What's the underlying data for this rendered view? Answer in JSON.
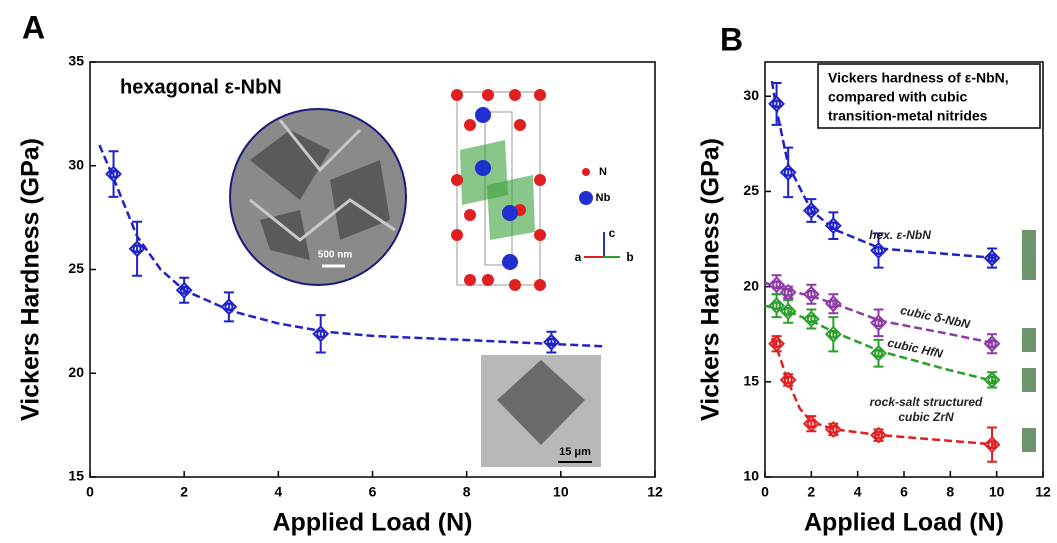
{
  "chart_data": [
    {
      "type": "errorbar",
      "panel_label": "A",
      "annotation": "hexagonal ε-NbN",
      "inset_labels": [
        "500 nm",
        "N",
        "Nb",
        "c",
        "a",
        "b",
        "15 μm"
      ],
      "xlabel": "Applied Load (N)",
      "ylabel": "Vickers Hardness (GPa)",
      "xlim": [
        0,
        12
      ],
      "xticks": [
        0,
        2,
        4,
        6,
        8,
        10,
        12
      ],
      "ylim": [
        15,
        35
      ],
      "yticks": [
        15,
        20,
        25,
        30,
        35
      ],
      "series": [
        {
          "color": "#1f22c8",
          "x": [
            0.5,
            1.0,
            2.0,
            2.95,
            4.9,
            9.8
          ],
          "values": [
            29.6,
            26.0,
            24.0,
            23.2,
            21.9,
            21.5
          ],
          "errors": [
            1.1,
            1.3,
            0.6,
            0.7,
            0.9,
            0.5
          ],
          "fit_x": [
            0.2,
            0.5,
            1,
            1.5,
            2,
            3,
            4,
            5,
            6,
            8,
            10.9
          ],
          "fit_y": [
            31.0,
            29.4,
            26.6,
            25.0,
            24.0,
            23.0,
            22.4,
            22.0,
            21.8,
            21.6,
            21.3
          ]
        }
      ]
    },
    {
      "type": "errorbar",
      "panel_label": "B",
      "box_lines": [
        "Vickers hardness of ε-NbN,",
        "compared with cubic",
        "transition-metal nitrides"
      ],
      "xlabel": "Applied Load (N)",
      "ylabel": "Vickers Hardness (GPa)",
      "xlim": [
        0,
        12
      ],
      "xticks": [
        0,
        2,
        4,
        6,
        8,
        10,
        12
      ],
      "ylim": [
        10,
        31.8
      ],
      "yticks": [
        10,
        15,
        20,
        25,
        30
      ],
      "series": [
        {
          "name": "hex. ε-NbN",
          "color": "#1f22c8",
          "x": [
            0.5,
            1.0,
            2.0,
            2.95,
            4.9,
            9.8
          ],
          "values": [
            29.6,
            26.0,
            24.0,
            23.2,
            21.9,
            21.5
          ],
          "errors": [
            1.1,
            1.3,
            0.6,
            0.7,
            0.9,
            0.5
          ],
          "fit_x": [
            0.3,
            0.5,
            1,
            2,
            3,
            5,
            8,
            10
          ],
          "fit_y": [
            30.8,
            29.3,
            26.4,
            24.0,
            23.0,
            22.0,
            21.7,
            21.5
          ]
        },
        {
          "name": "cubic δ-NbN",
          "color": "#8e3aa6",
          "x": [
            0.5,
            1.0,
            2.0,
            2.95,
            4.9,
            9.8
          ],
          "values": [
            20.1,
            19.7,
            19.6,
            19.1,
            18.1,
            17.0
          ],
          "errors": [
            0.5,
            0.3,
            0.5,
            0.5,
            0.7,
            0.5
          ],
          "fit_x": [
            0,
            1,
            2,
            3,
            5,
            8,
            10
          ],
          "fit_y": [
            20.2,
            19.8,
            19.5,
            19.1,
            18.2,
            17.5,
            17.0
          ]
        },
        {
          "name": "cubic HfN",
          "color": "#2aa02a",
          "x": [
            0.5,
            1.0,
            2.0,
            2.95,
            4.9,
            9.8
          ],
          "values": [
            19.0,
            18.7,
            18.3,
            17.5,
            16.5,
            15.1
          ],
          "errors": [
            0.6,
            0.6,
            0.5,
            0.9,
            0.7,
            0.4
          ],
          "fit_x": [
            0,
            1,
            2,
            3,
            5,
            8,
            10
          ],
          "fit_y": [
            19.0,
            18.7,
            18.2,
            17.6,
            16.6,
            15.6,
            15.0
          ]
        },
        {
          "name": "rock-salt structured cubic ZrN",
          "color": "#e02020",
          "x": [
            0.5,
            1.0,
            2.0,
            2.95,
            4.9,
            9.8
          ],
          "values": [
            17.0,
            15.1,
            12.8,
            12.5,
            12.2,
            11.7
          ],
          "errors": [
            0.4,
            0.3,
            0.4,
            0.3,
            0.3,
            0.9
          ],
          "fit_x": [
            0.3,
            0.5,
            1,
            1.5,
            2,
            3,
            5,
            8,
            10
          ],
          "fit_y": [
            17.3,
            16.8,
            15.0,
            13.6,
            12.9,
            12.5,
            12.2,
            11.9,
            11.7
          ]
        }
      ]
    }
  ]
}
